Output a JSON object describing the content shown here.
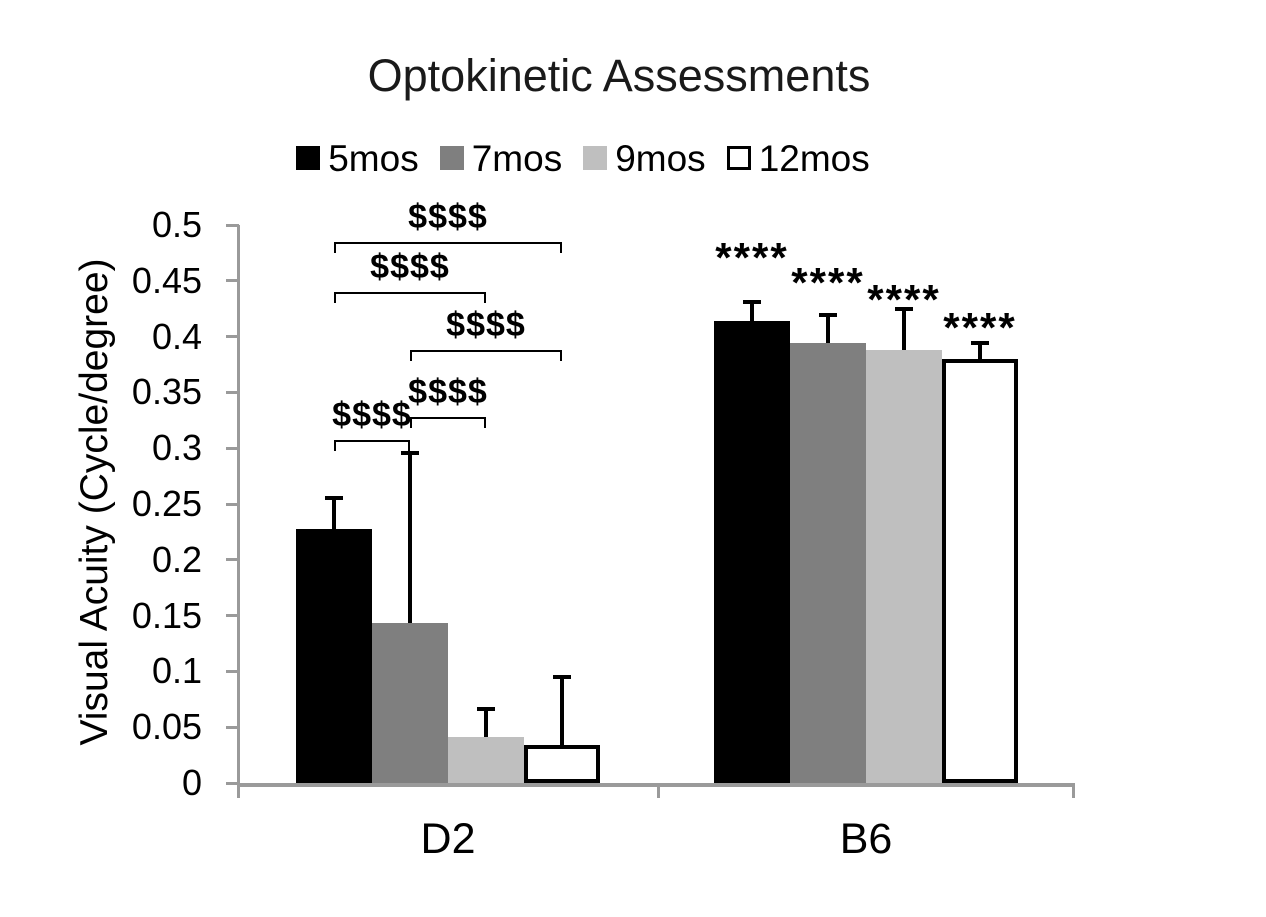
{
  "figure": {
    "background": "#ffffff",
    "axis_color": "#9a9a9a",
    "text_color": "#000000"
  },
  "chart_data": {
    "type": "bar",
    "title": "Optokinetic Assessments",
    "ylabel": "Visual Acuity (Cycle/degree)",
    "xlabel": "",
    "groups": [
      "D2",
      "B6"
    ],
    "ylim": [
      0,
      0.5
    ],
    "y_ticks": [
      "0",
      "0.05",
      "0.1",
      "0.15",
      "0.2",
      "0.25",
      "0.3",
      "0.35",
      "0.4",
      "0.45",
      "0.5"
    ],
    "grid": false,
    "legend_position": "top",
    "series": [
      {
        "name": "5mos",
        "fill": "#000000",
        "border": "#000000",
        "values": [
          0.228,
          0.414
        ],
        "errors_plus": [
          0.027,
          0.017
        ]
      },
      {
        "name": "7mos",
        "fill": "#7f7f7f",
        "border": "#7f7f7f",
        "values": [
          0.143,
          0.394
        ],
        "errors_plus": [
          0.153,
          0.025
        ]
      },
      {
        "name": "9mos",
        "fill": "#bfbfbf",
        "border": "#bfbfbf",
        "values": [
          0.041,
          0.388
        ],
        "errors_plus": [
          0.025,
          0.037
        ]
      },
      {
        "name": "12mos",
        "fill": "#ffffff",
        "border": "#000000",
        "values": [
          0.034,
          0.38
        ],
        "errors_plus": [
          0.061,
          0.014
        ]
      }
    ],
    "annotations": {
      "brackets": [
        {
          "group": "D2",
          "from_series": 0,
          "to_series": 3,
          "label": "$$$$",
          "y": 0.485
        },
        {
          "group": "D2",
          "from_series": 0,
          "to_series": 2,
          "label": "$$$$",
          "y": 0.44
        },
        {
          "group": "D2",
          "from_series": 1,
          "to_series": 3,
          "label": "$$$$",
          "y": 0.388
        },
        {
          "group": "D2",
          "from_series": 1,
          "to_series": 2,
          "label": "$$$$",
          "y": 0.328
        },
        {
          "group": "D2",
          "from_series": 0,
          "to_series": 1,
          "label": "$$$$",
          "y": 0.307
        }
      ],
      "stars": [
        {
          "group": "B6",
          "series": 0,
          "label": "****",
          "y": 0.476
        },
        {
          "group": "B6",
          "series": 1,
          "label": "****",
          "y": 0.453
        },
        {
          "group": "B6",
          "series": 2,
          "label": "****",
          "y": 0.438
        },
        {
          "group": "B6",
          "series": 3,
          "label": "****",
          "y": 0.413
        }
      ]
    }
  }
}
